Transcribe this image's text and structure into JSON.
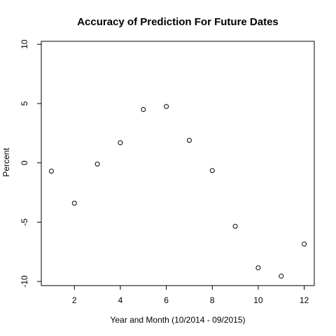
{
  "chart_data": {
    "type": "scatter",
    "title": "Accuracy of Prediction For Future Dates",
    "xlabel": "Year and Month (10/2014 - 09/2015)",
    "ylabel": "Percent",
    "xlim": [
      0.56,
      12.44
    ],
    "ylim": [
      -10.35,
      10.25
    ],
    "xticks": [
      2,
      4,
      6,
      8,
      10,
      12
    ],
    "yticks": [
      -10,
      -5,
      0,
      5,
      10
    ],
    "grid": false,
    "marker": "open-circle",
    "colors": {
      "points": "#000000",
      "axes": "#000000",
      "background": "#ffffff"
    },
    "x": [
      1,
      2,
      3,
      4,
      5,
      6,
      7,
      8,
      9,
      10,
      11,
      12
    ],
    "y": [
      -0.7,
      -3.4,
      -0.1,
      1.7,
      4.5,
      4.75,
      1.9,
      -0.65,
      -5.35,
      -8.85,
      -9.55,
      -6.85
    ]
  }
}
